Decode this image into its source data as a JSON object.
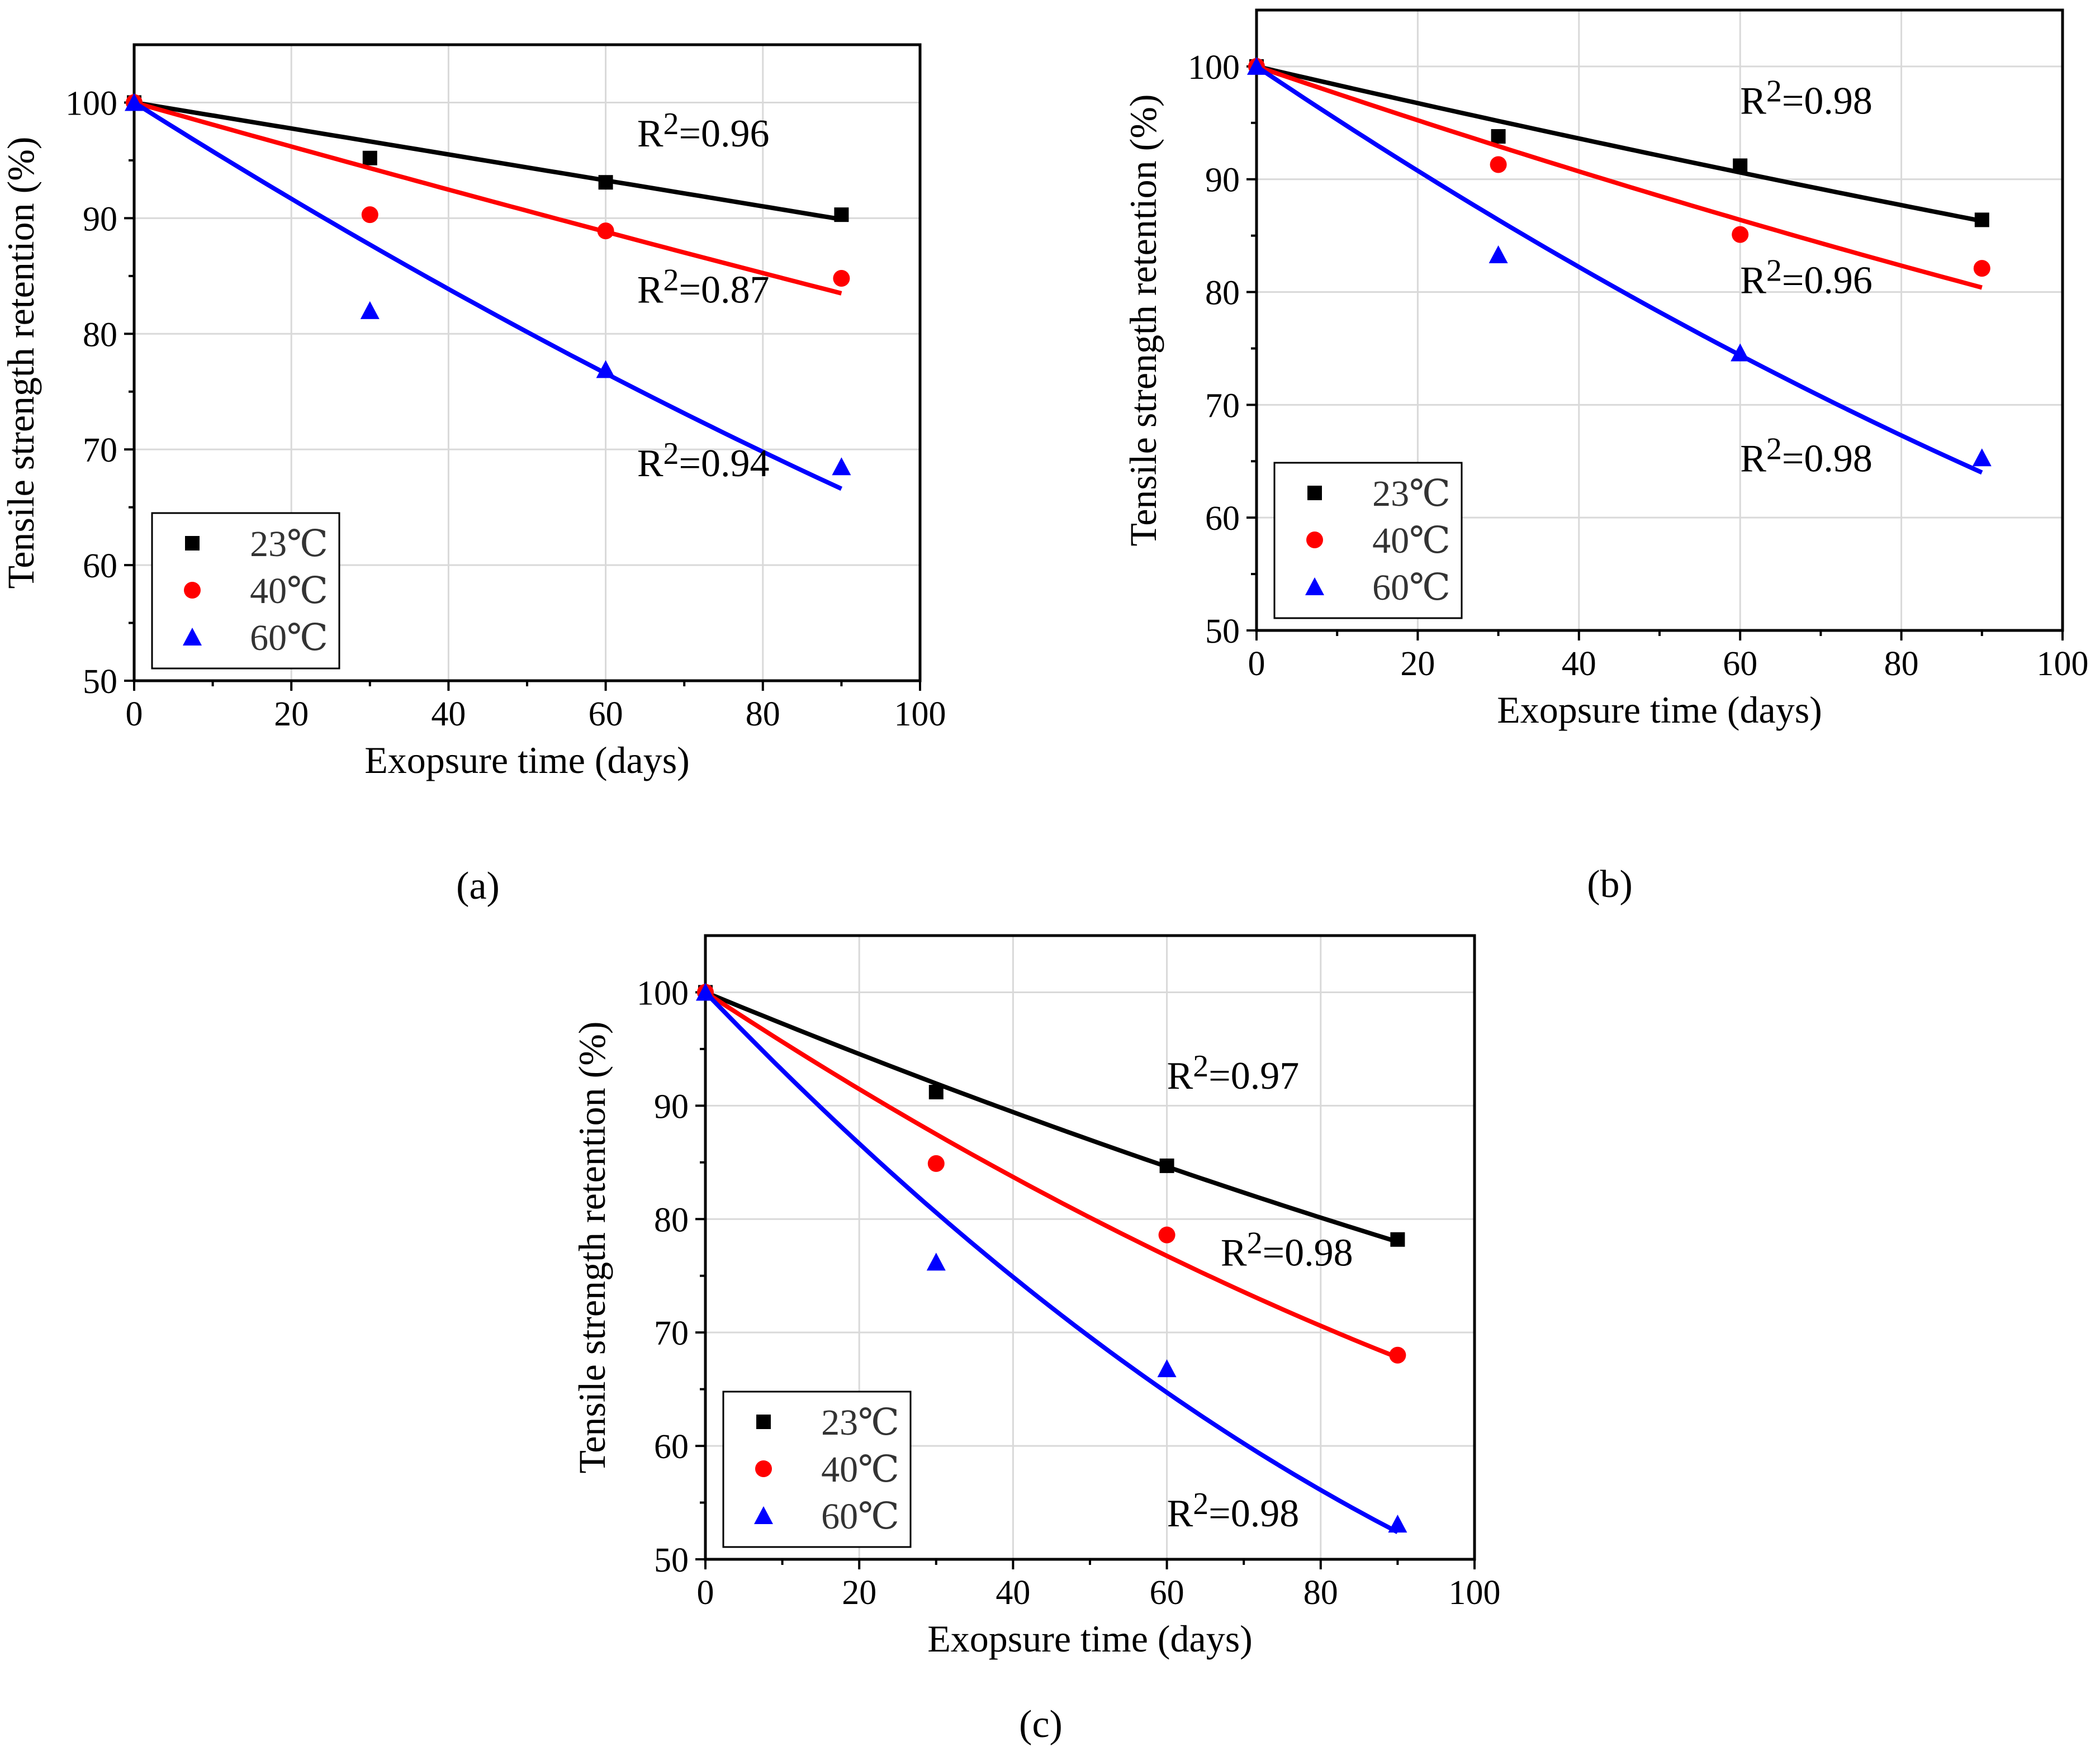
{
  "figure": {
    "panel_labels": [
      "(a)",
      "(b)",
      "(c)"
    ]
  },
  "colors": {
    "23C": "#000000",
    "40C": "#ff0000",
    "60C": "#0000ff"
  },
  "chart_data": [
    {
      "type": "scatter",
      "panel": "(a)",
      "xlabel": "Exopsure time (days)",
      "ylabel": "Tensile strength retention (%)",
      "xlim": [
        0,
        100
      ],
      "ylim": [
        50,
        105
      ],
      "xticks": [
        0,
        20,
        40,
        60,
        80,
        100
      ],
      "yticks": [
        50,
        60,
        70,
        80,
        90,
        100
      ],
      "grid": true,
      "legend": "bottom-left",
      "series": [
        {
          "name": "23℃",
          "marker": "square",
          "color": "#000000",
          "x": [
            0,
            30,
            60,
            90
          ],
          "y": [
            100,
            95.2,
            93.1,
            90.3
          ],
          "fit_end": 90,
          "fit_end_y": 89.9,
          "fit_curve": 0,
          "r2_label": "R",
          "r2_sup": "2",
          "r2_value": "=0.96",
          "r2_x": 64,
          "r2_y": 96.2
        },
        {
          "name": "40℃",
          "marker": "circle",
          "color": "#ff0000",
          "x": [
            0,
            30,
            60,
            90
          ],
          "y": [
            100,
            90.3,
            88.9,
            84.8
          ],
          "fit_end": 90,
          "fit_end_y": 83.5,
          "fit_curve": 0.2,
          "r2_label": "R",
          "r2_sup": "2",
          "r2_value": "=0.87",
          "r2_x": 64,
          "r2_y": 82.7
        },
        {
          "name": "60℃",
          "marker": "triangle",
          "color": "#0000ff",
          "x": [
            0,
            30,
            60,
            90
          ],
          "y": [
            100,
            82.0,
            76.9,
            68.5
          ],
          "fit_end": 90,
          "fit_end_y": 66.6,
          "fit_curve": 1.3,
          "r2_label": "R",
          "r2_sup": "2",
          "r2_value": "=0.94",
          "r2_x": 64,
          "r2_y": 67.7
        }
      ]
    },
    {
      "type": "scatter",
      "panel": "(b)",
      "xlabel": "Exopsure time (days)",
      "ylabel": "Tensile strength retention (%)",
      "xlim": [
        0,
        100
      ],
      "ylim": [
        50,
        105
      ],
      "xticks": [
        0,
        20,
        40,
        60,
        80,
        100
      ],
      "yticks": [
        50,
        60,
        70,
        80,
        90,
        100
      ],
      "grid": true,
      "legend": "bottom-left",
      "series": [
        {
          "name": "23℃",
          "marker": "square",
          "color": "#000000",
          "x": [
            0,
            30,
            60,
            90
          ],
          "y": [
            100,
            93.8,
            91.2,
            86.4
          ],
          "fit_end": 90,
          "fit_end_y": 86.3,
          "fit_curve": 0.3,
          "r2_label": "R",
          "r2_sup": "2",
          "r2_value": "=0.98",
          "r2_x": 60,
          "r2_y": 95.8
        },
        {
          "name": "40℃",
          "marker": "circle",
          "color": "#ff0000",
          "x": [
            0,
            30,
            60,
            90
          ],
          "y": [
            100,
            91.3,
            85.1,
            82.1
          ],
          "fit_end": 90,
          "fit_end_y": 80.4,
          "fit_curve": 0.6,
          "r2_label": "R",
          "r2_sup": "2",
          "r2_value": "=0.96",
          "r2_x": 60,
          "r2_y": 79.9
        },
        {
          "name": "60℃",
          "marker": "triangle",
          "color": "#0000ff",
          "x": [
            0,
            30,
            60,
            90
          ],
          "y": [
            100,
            83.3,
            74.6,
            65.3
          ],
          "fit_end": 90,
          "fit_end_y": 64.0,
          "fit_curve": 1.8,
          "r2_label": "R",
          "r2_sup": "2",
          "r2_value": "=0.98",
          "r2_x": 60,
          "r2_y": 64.1
        }
      ]
    },
    {
      "type": "scatter",
      "panel": "(c)",
      "xlabel": "Exopsure time (days)",
      "ylabel": "Tensile strength retention (%)",
      "xlim": [
        0,
        100
      ],
      "ylim": [
        50,
        105
      ],
      "xticks": [
        0,
        20,
        40,
        60,
        80,
        100
      ],
      "yticks": [
        50,
        60,
        70,
        80,
        90,
        100
      ],
      "grid": true,
      "legend": "bottom-left",
      "series": [
        {
          "name": "23℃",
          "marker": "square",
          "color": "#000000",
          "x": [
            0,
            30,
            60,
            90
          ],
          "y": [
            100,
            91.2,
            84.7,
            78.2
          ],
          "fit_end": 90,
          "fit_end_y": 78.0,
          "fit_curve": 0.8,
          "r2_label": "R",
          "r2_sup": "2",
          "r2_value": "=0.97",
          "r2_x": 60,
          "r2_y": 91.5
        },
        {
          "name": "40℃",
          "marker": "circle",
          "color": "#ff0000",
          "x": [
            0,
            30,
            60,
            90
          ],
          "y": [
            100,
            84.9,
            78.6,
            68.0
          ],
          "fit_end": 90,
          "fit_end_y": 67.8,
          "fit_curve": 2.0,
          "r2_label": "R",
          "r2_sup": "2",
          "r2_value": "=0.98",
          "r2_x": 67,
          "r2_y": 75.9
        },
        {
          "name": "60℃",
          "marker": "triangle",
          "color": "#0000ff",
          "x": [
            0,
            30,
            60,
            90
          ],
          "y": [
            100,
            76.2,
            66.8,
            53.1
          ],
          "fit_end": 90,
          "fit_end_y": 52.4,
          "fit_curve": 4.0,
          "r2_label": "R",
          "r2_sup": "2",
          "r2_value": "=0.98",
          "r2_x": 60,
          "r2_y": 52.9
        }
      ]
    }
  ]
}
